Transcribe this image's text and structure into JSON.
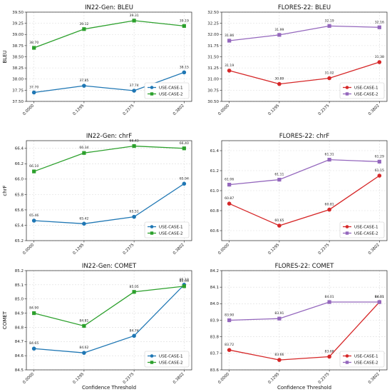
{
  "chart_data": [
    {
      "type": "line",
      "title": "IN22-Gen: BLEU",
      "xlabel": "",
      "ylabel": "BLEU",
      "categories": [
        "0.0000",
        "0.1295",
        "0.2375",
        "0.3802"
      ],
      "ylim": [
        37.5,
        39.5
      ],
      "yticks": [
        "37.50",
        "37.75",
        "38.00",
        "38.25",
        "38.50",
        "38.75",
        "39.00",
        "39.25",
        "39.50"
      ],
      "grid": true,
      "legend": "lower-right",
      "series": [
        {
          "name": "USE-CASE-1",
          "color": "#1f77b4",
          "marker": "circle",
          "values": [
            37.7,
            37.85,
            37.74,
            38.15
          ],
          "labels": [
            "37.70",
            "37.85",
            "37.74",
            "38.15"
          ]
        },
        {
          "name": "USE-CASE-2",
          "color": "#2ca02c",
          "marker": "square",
          "values": [
            38.7,
            39.12,
            39.31,
            39.19
          ],
          "labels": [
            "38.70",
            "39.12",
            "39.31",
            "39.19"
          ]
        }
      ]
    },
    {
      "type": "line",
      "title": "FLORES-22: BLEU",
      "xlabel": "",
      "ylabel": "",
      "categories": [
        "0.0000",
        "0.1295",
        "0.2375",
        "0.3802"
      ],
      "ylim": [
        30.5,
        32.5
      ],
      "yticks": [
        "30.50",
        "30.75",
        "31.00",
        "31.25",
        "31.50",
        "31.75",
        "32.00",
        "32.25",
        "32.50"
      ],
      "grid": true,
      "legend": "lower-right",
      "series": [
        {
          "name": "USE-CASE-1",
          "color": "#d62728",
          "marker": "circle",
          "values": [
            31.19,
            30.89,
            31.02,
            31.38
          ],
          "labels": [
            "31.19",
            "30.89",
            "31.02",
            "31.38"
          ]
        },
        {
          "name": "USE-CASE-2",
          "color": "#9467bd",
          "marker": "square",
          "values": [
            31.86,
            31.99,
            32.19,
            32.16
          ],
          "labels": [
            "31.86",
            "31.99",
            "32.19",
            "32.16"
          ]
        }
      ]
    },
    {
      "type": "line",
      "title": "IN22-Gen: chrF",
      "xlabel": "",
      "ylabel": "chrF",
      "categories": [
        "0.0000",
        "0.1295",
        "0.2375",
        "0.3802"
      ],
      "ylim": [
        65.2,
        66.5
      ],
      "yticks": [
        "65.2",
        "65.4",
        "65.6",
        "65.8",
        "66.0",
        "66.2",
        "66.4"
      ],
      "grid": true,
      "legend": "lower-right",
      "series": [
        {
          "name": "USE-CASE-1",
          "color": "#1f77b4",
          "marker": "circle",
          "values": [
            65.46,
            65.42,
            65.51,
            65.94
          ],
          "labels": [
            "65.46",
            "65.42",
            "65.51",
            "65.94"
          ]
        },
        {
          "name": "USE-CASE-2",
          "color": "#2ca02c",
          "marker": "square",
          "values": [
            66.1,
            66.34,
            66.43,
            66.4
          ],
          "labels": [
            "66.10",
            "66.34",
            "66.43",
            "66.40"
          ]
        }
      ]
    },
    {
      "type": "line",
      "title": "FLORES-22: chrF",
      "xlabel": "",
      "ylabel": "",
      "categories": [
        "0.0000",
        "0.1295",
        "0.2375",
        "0.3802"
      ],
      "ylim": [
        60.5,
        61.5
      ],
      "yticks": [
        "60.6",
        "60.8",
        "61.0",
        "61.2",
        "61.4"
      ],
      "grid": true,
      "legend": "lower-right",
      "series": [
        {
          "name": "USE-CASE-1",
          "color": "#d62728",
          "marker": "circle",
          "values": [
            60.87,
            60.65,
            60.81,
            61.15
          ],
          "labels": [
            "60.87",
            "60.65",
            "60.81",
            "61.15"
          ]
        },
        {
          "name": "USE-CASE-2",
          "color": "#9467bd",
          "marker": "square",
          "values": [
            61.06,
            61.11,
            61.31,
            61.29
          ],
          "labels": [
            "61.06",
            "61.11",
            "61.31",
            "61.29"
          ]
        }
      ]
    },
    {
      "type": "line",
      "title": "IN22-Gen: COMET",
      "xlabel": "Confidence Threshold",
      "ylabel": "COMET",
      "categories": [
        "0.0000",
        "0.1295",
        "0.2375",
        "0.3802"
      ],
      "ylim": [
        84.5,
        85.2
      ],
      "yticks": [
        "84.5",
        "84.6",
        "84.7",
        "84.8",
        "84.9",
        "85.0",
        "85.1",
        "85.2"
      ],
      "grid": true,
      "legend": "lower-right",
      "series": [
        {
          "name": "USE-CASE-1",
          "color": "#1f77b4",
          "marker": "circle",
          "values": [
            84.65,
            84.62,
            84.74,
            85.1
          ],
          "labels": [
            "84.65",
            "84.62",
            "84.74",
            "85.10"
          ]
        },
        {
          "name": "USE-CASE-2",
          "color": "#2ca02c",
          "marker": "square",
          "values": [
            84.9,
            84.81,
            85.05,
            85.09
          ],
          "labels": [
            "84.90",
            "84.81",
            "85.05",
            "85.09"
          ]
        }
      ]
    },
    {
      "type": "line",
      "title": "FLORES-22: COMET",
      "xlabel": "Confidence Threshold",
      "ylabel": "",
      "categories": [
        "0.0000",
        "0.1295",
        "0.2375",
        "0.3802"
      ],
      "ylim": [
        83.6,
        84.2
      ],
      "yticks": [
        "83.6",
        "83.7",
        "83.8",
        "83.9",
        "84.0",
        "84.1",
        "84.2"
      ],
      "grid": true,
      "legend": "lower-right",
      "series": [
        {
          "name": "USE-CASE-1",
          "color": "#d62728",
          "marker": "circle",
          "values": [
            83.72,
            83.66,
            83.68,
            84.01
          ],
          "labels": [
            "83.72",
            "83.66",
            "83.68",
            "84.01"
          ]
        },
        {
          "name": "USE-CASE-2",
          "color": "#9467bd",
          "marker": "square",
          "values": [
            83.9,
            83.91,
            84.01,
            84.01
          ],
          "labels": [
            "83.90",
            "83.91",
            "84.01",
            "84.01"
          ]
        }
      ]
    }
  ]
}
